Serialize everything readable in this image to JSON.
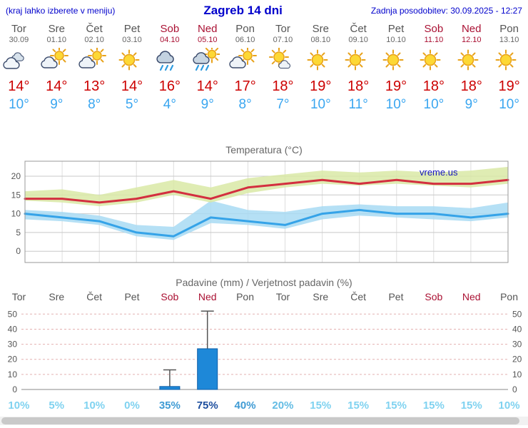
{
  "header": {
    "hint": "(kraj lahko izberete v meniju)",
    "title": "Zagreb 14 dni",
    "updated": "Zadnja posodobitev: 30.09.2025 - 12:27"
  },
  "colors": {
    "accent_blue": "#0000cc",
    "weekend_red": "#aa1133",
    "max_temp_red": "#cc0000",
    "min_temp_blue": "#3aa6f0"
  },
  "days": [
    {
      "name": "Tor",
      "date": "30.09",
      "weekend": false,
      "icon": "cloudy",
      "max": "14°",
      "min": "10°"
    },
    {
      "name": "Sre",
      "date": "01.10",
      "weekend": false,
      "icon": "partly",
      "max": "14°",
      "min": "9°"
    },
    {
      "name": "Čet",
      "date": "02.10",
      "weekend": false,
      "icon": "partly",
      "max": "13°",
      "min": "8°"
    },
    {
      "name": "Pet",
      "date": "03.10",
      "weekend": false,
      "icon": "sunny",
      "max": "14°",
      "min": "5°"
    },
    {
      "name": "Sob",
      "date": "04.10",
      "weekend": true,
      "icon": "rain",
      "max": "16°",
      "min": "4°"
    },
    {
      "name": "Ned",
      "date": "05.10",
      "weekend": true,
      "icon": "showers",
      "max": "14°",
      "min": "9°"
    },
    {
      "name": "Pon",
      "date": "06.10",
      "weekend": false,
      "icon": "partly",
      "max": "17°",
      "min": "8°"
    },
    {
      "name": "Tor",
      "date": "07.10",
      "weekend": false,
      "icon": "mostly-sunny",
      "max": "18°",
      "min": "7°"
    },
    {
      "name": "Sre",
      "date": "08.10",
      "weekend": false,
      "icon": "sunny",
      "max": "19°",
      "min": "10°"
    },
    {
      "name": "Čet",
      "date": "09.10",
      "weekend": false,
      "icon": "sunny",
      "max": "18°",
      "min": "11°"
    },
    {
      "name": "Pet",
      "date": "10.10",
      "weekend": false,
      "icon": "sunny",
      "max": "19°",
      "min": "10°"
    },
    {
      "name": "Sob",
      "date": "11.10",
      "weekend": true,
      "icon": "sunny",
      "max": "18°",
      "min": "10°"
    },
    {
      "name": "Ned",
      "date": "12.10",
      "weekend": true,
      "icon": "sunny",
      "max": "18°",
      "min": "9°"
    },
    {
      "name": "Pon",
      "date": "13.10",
      "weekend": false,
      "icon": "sunny",
      "max": "19°",
      "min": "10°"
    }
  ],
  "chart_data": [
    {
      "type": "line",
      "title": "Temperatura (°C)",
      "watermark": "vreme.us",
      "y_ticks": [
        0,
        5,
        10,
        15,
        20
      ],
      "ylim": [
        -3,
        24
      ],
      "grid": true,
      "categories": [
        "Tor 30.09",
        "Sre 01.10",
        "Čet 02.10",
        "Pet 03.10",
        "Sob 04.10",
        "Ned 05.10",
        "Pon 06.10",
        "Tor 07.10",
        "Sre 08.10",
        "Čet 09.10",
        "Pet 10.10",
        "Sob 11.10",
        "Ned 12.10",
        "Pon 13.10"
      ],
      "series": [
        {
          "name": "max temperatura",
          "color": "#d32f3f",
          "values": [
            14,
            14,
            13,
            14,
            16,
            14,
            17,
            18,
            19,
            18,
            19,
            18,
            18,
            19
          ]
        },
        {
          "name": "min temperatura",
          "color": "#35a3e8",
          "values": [
            10,
            9,
            8,
            5,
            4,
            9,
            8,
            7,
            10,
            11,
            10,
            10,
            9,
            10
          ]
        }
      ],
      "bands": [
        {
          "name": "min range",
          "color": "#a8daf3",
          "upper": [
            11,
            10.5,
            9.5,
            7,
            6.5,
            13.5,
            11,
            10.5,
            12,
            12.5,
            12,
            12,
            11.5,
            13
          ],
          "lower": [
            8.5,
            8,
            7,
            4,
            3,
            7.5,
            7,
            6,
            8.5,
            9.5,
            9,
            8.5,
            8,
            9
          ]
        },
        {
          "name": "max range",
          "color": "#d9e9a6",
          "upper": [
            16,
            16.5,
            15,
            17,
            19,
            17,
            19.5,
            20.5,
            21.5,
            21,
            21.5,
            21,
            21.5,
            22.5
          ],
          "lower": [
            13.5,
            13,
            12,
            13,
            15,
            13,
            15.5,
            17,
            18,
            17.5,
            18,
            17.5,
            17,
            18
          ]
        }
      ]
    },
    {
      "type": "bar",
      "title": "Padavine (mm) / Verjetnost padavin (%)",
      "categories": [
        "Tor",
        "Sre",
        "Čet",
        "Pet",
        "Sob",
        "Ned",
        "Pon",
        "Tor",
        "Sre",
        "Čet",
        "Pet",
        "Sob",
        "Ned",
        "Pon"
      ],
      "weekend": [
        false,
        false,
        false,
        false,
        true,
        true,
        false,
        false,
        false,
        false,
        false,
        true,
        true,
        false
      ],
      "values": [
        0,
        0,
        0,
        0,
        2,
        27,
        0,
        0,
        0,
        0,
        0,
        0,
        0,
        0
      ],
      "whisker_max": [
        0,
        0,
        0,
        0,
        13,
        52,
        0,
        0,
        0,
        0,
        0,
        0,
        0,
        0
      ],
      "probabilities": [
        "10%",
        "5%",
        "10%",
        "0%",
        "35%",
        "75%",
        "40%",
        "20%",
        "15%",
        "15%",
        "15%",
        "15%",
        "15%",
        "10%"
      ],
      "prob_colors": [
        "#7fd2f0",
        "#7fd2f0",
        "#7fd2f0",
        "#7fd2f0",
        "#3f9bd4",
        "#1d4e9e",
        "#3f9bd4",
        "#63bce4",
        "#7fd2f0",
        "#7fd2f0",
        "#7fd2f0",
        "#7fd2f0",
        "#7fd2f0",
        "#7fd2f0"
      ],
      "y_ticks": [
        0,
        10,
        20,
        30,
        40,
        50
      ],
      "ylim": [
        0,
        53
      ],
      "bar_color": "#1e88d8",
      "bar_border": "#0d5ea8",
      "grid_color": "#e4b0b0"
    }
  ]
}
